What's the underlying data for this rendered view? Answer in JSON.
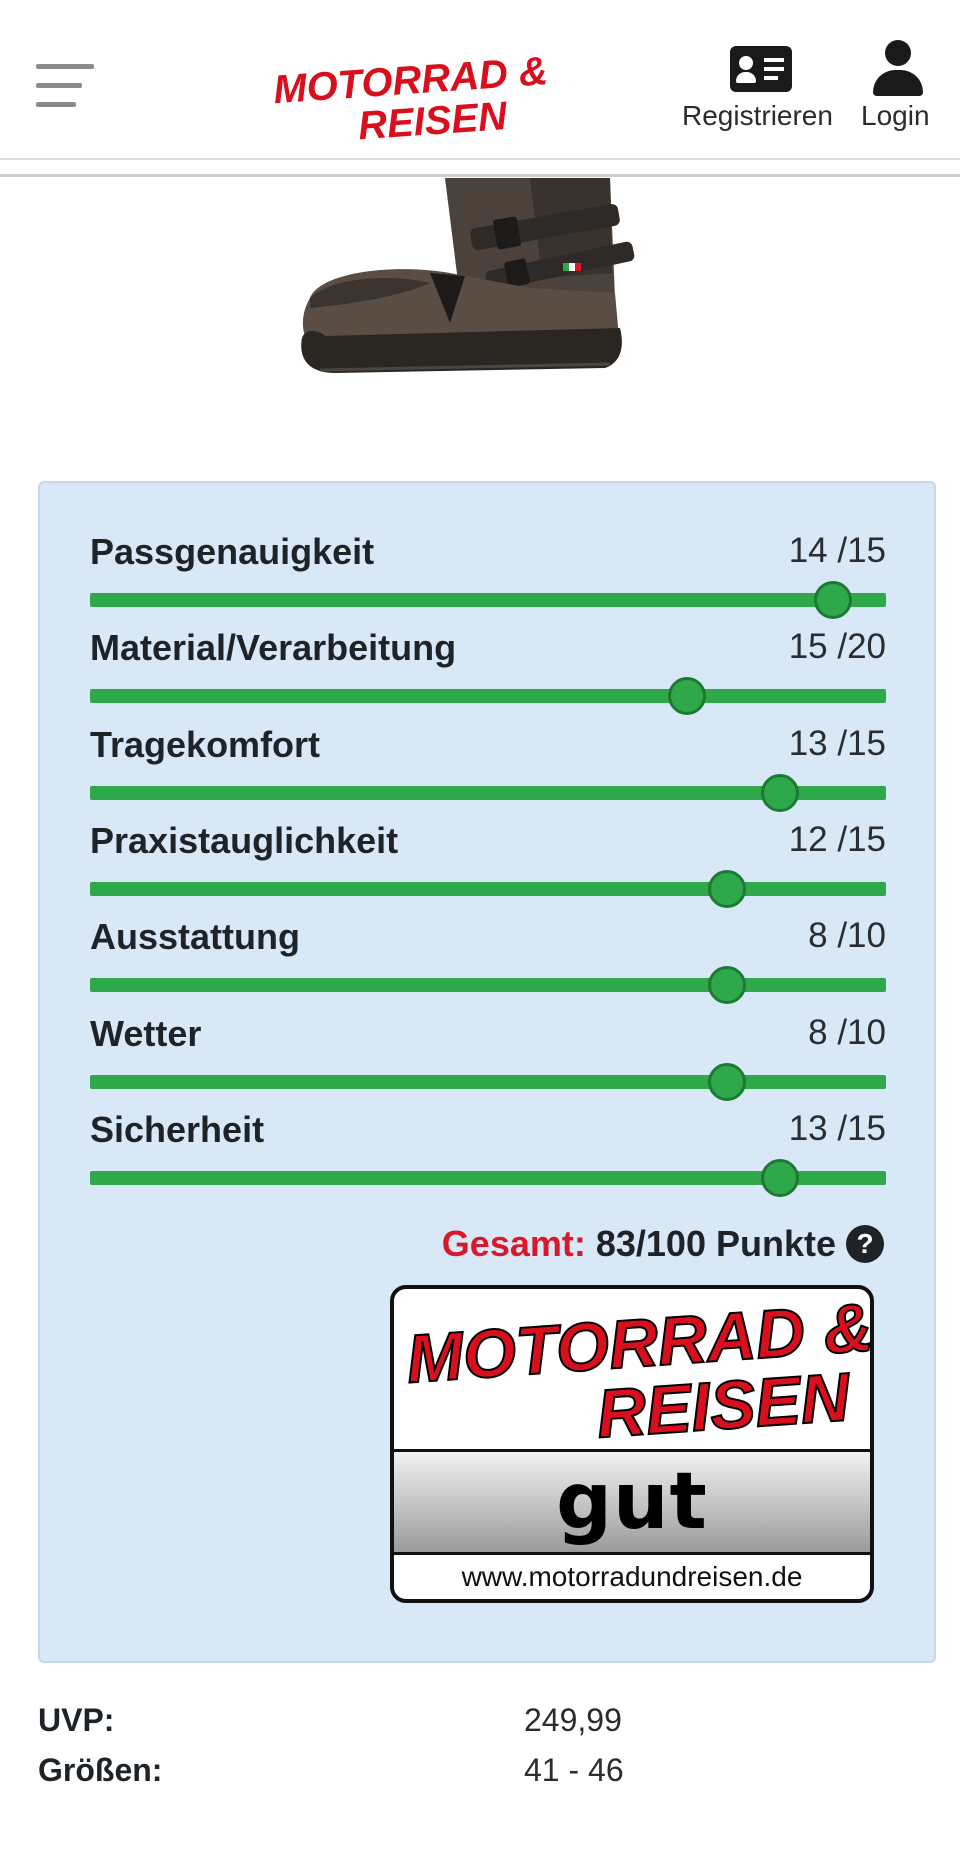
{
  "header": {
    "logo_line1": "MOTORRAD &",
    "logo_line2": "REISEN",
    "register_label": "Registrieren",
    "login_label": "Login"
  },
  "ratings": [
    {
      "label": "Passgenauigkeit",
      "score": "14 /15",
      "value": 14,
      "max": 15
    },
    {
      "label": "Material/Verarbeitung",
      "score": "15 /20",
      "value": 15,
      "max": 20
    },
    {
      "label": "Tragekomfort",
      "score": "13 /15",
      "value": 13,
      "max": 15
    },
    {
      "label": "Praxistauglichkeit",
      "score": "12 /15",
      "value": 12,
      "max": 15
    },
    {
      "label": "Ausstattung",
      "score": "8 /10",
      "value": 8,
      "max": 10
    },
    {
      "label": "Wetter",
      "score": "8 /10",
      "value": 8,
      "max": 10
    },
    {
      "label": "Sicherheit",
      "score": "13 /15",
      "value": 13,
      "max": 15
    }
  ],
  "total": {
    "label": "Gesamt:",
    "value": "83/100 Punkte",
    "help_icon": "question-icon"
  },
  "seal": {
    "line1": "MOTORRAD &",
    "line2": "REISEN",
    "grade": "gut",
    "url": "www.motorradundreisen.de"
  },
  "specs": [
    {
      "key": "UVP:",
      "value": "249,99"
    },
    {
      "key": "Größen:",
      "value": "41 - 46"
    }
  ],
  "colors": {
    "brand_red": "#d8101e",
    "slider_green": "#2fa84a",
    "panel_bg": "#d8e8f6",
    "total_label_red": "#d8192a"
  }
}
